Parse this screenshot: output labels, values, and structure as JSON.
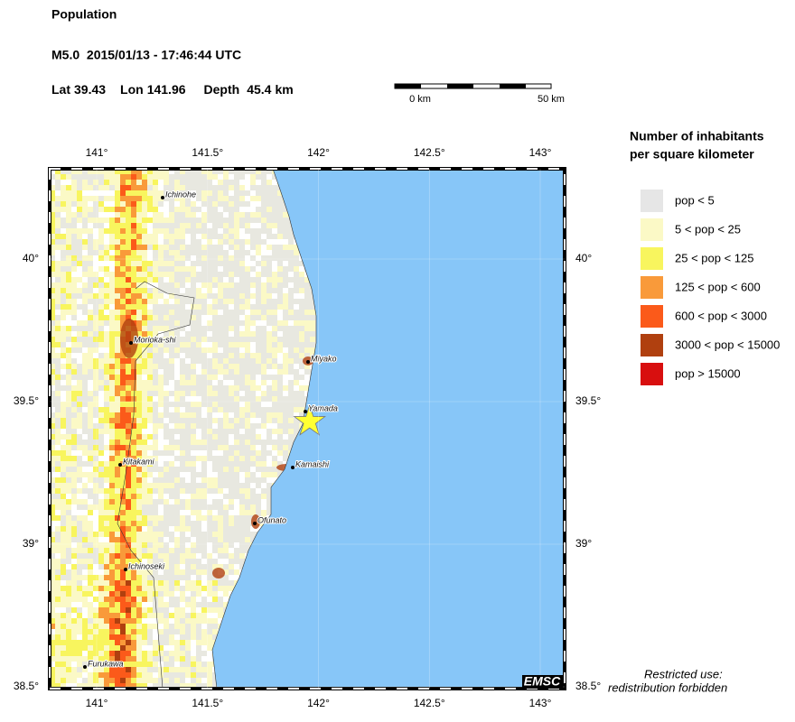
{
  "header": {
    "title": "Population",
    "event": "M5.0  2015/01/13 - 17:46:44 UTC",
    "lat": {
      "label": "Lat",
      "value": 39.43
    },
    "lon": {
      "label": "Lon",
      "value": 141.96
    },
    "depth": {
      "label": "Depth",
      "value": 45.4,
      "unit": "km"
    }
  },
  "scale_bar": {
    "start": "0 km",
    "end": "50 km"
  },
  "map": {
    "lon_ticks": [
      {
        "value": 141,
        "label": "141°"
      },
      {
        "value": 141.5,
        "label": "141.5°"
      },
      {
        "value": 142,
        "label": "142°"
      },
      {
        "value": 142.5,
        "label": "142.5°"
      },
      {
        "value": 143,
        "label": "143°"
      }
    ],
    "lat_ticks": [
      {
        "value": 40,
        "label": "40°"
      },
      {
        "value": 39.5,
        "label": "39.5°"
      },
      {
        "value": 39,
        "label": "39°"
      },
      {
        "value": 38.5,
        "label": "38.5°"
      }
    ],
    "cities": [
      "Ichinohe",
      "Morioka-shi",
      "Miyako",
      "Yamada",
      "Kitakami",
      "Kamaishi",
      "Ofunato",
      "Ichinoseki",
      "Furukawa"
    ],
    "badge": "EMSC"
  },
  "legend": {
    "title": [
      "Number of inhabitants",
      "per square kilometer"
    ],
    "items": [
      {
        "label": "pop < 5",
        "color": "#e6e6e6"
      },
      {
        "label": "5 < pop < 25",
        "color": "#fbf9c6"
      },
      {
        "label": "25 < pop < 125",
        "color": "#f8f55e"
      },
      {
        "label": "125 < pop < 600",
        "color": "#f99a3a"
      },
      {
        "label": "600 < pop < 3000",
        "color": "#fb5a1a"
      },
      {
        "label": "3000 < pop < 15000",
        "color": "#b0400f"
      },
      {
        "label": "pop > 15000",
        "color": "#d80f0f"
      }
    ]
  },
  "notice": [
    "Restricted use:",
    "redistribution forbidden"
  ]
}
